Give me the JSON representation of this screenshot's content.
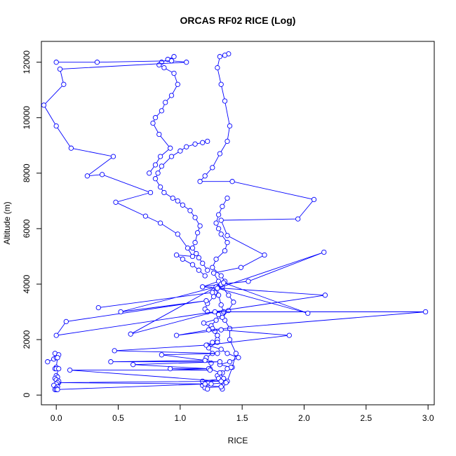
{
  "chart_data": {
    "type": "line",
    "title": "ORCAS RF02 RICE (Log)",
    "xlabel": "RICE",
    "ylabel": "Altitude (m)",
    "xlim": [
      -0.12,
      3.05
    ],
    "ylim": [
      -350,
      12750
    ],
    "xticks": [
      "0.0",
      "0.5",
      "1.0",
      "1.5",
      "2.0",
      "2.5",
      "3.0"
    ],
    "xtick_values": [
      0,
      0.5,
      1.0,
      1.5,
      2.0,
      2.5,
      3.0
    ],
    "yticks": [
      "0",
      "2000",
      "4000",
      "6000",
      "8000",
      "10000",
      "12000"
    ],
    "ytick_values": [
      0,
      2000,
      4000,
      6000,
      8000,
      10000,
      12000
    ],
    "grid": false,
    "marker": "open-circle",
    "color": "#0000ff",
    "series": [
      {
        "x": [
          1.34,
          1.38,
          1.42,
          1.45,
          1.4,
          1.4,
          1.36,
          1.35,
          1.33,
          1.31,
          1.3,
          1.28,
          1.27,
          1.22,
          1.2,
          1.22,
          1.31,
          1.29,
          1.25,
          1.28,
          1.3,
          1.3,
          1.26,
          1.22,
          1.33,
          1.38,
          1.47,
          1.4,
          1.32,
          1.41,
          1.38,
          1.34,
          1.3,
          1.31,
          1.34,
          1.37,
          1.25,
          1.18,
          1.33,
          1.2,
          1.22,
          1.18,
          1.35,
          1.32,
          1.24,
          1.25,
          1.21,
          1.26,
          1.23,
          1.3,
          1.3,
          1.26,
          1.19,
          1.34,
          1.39,
          1.43,
          1.39,
          1.34,
          1.36,
          1.33,
          1.26,
          1.29,
          1.36,
          1.38,
          1.33,
          1.31,
          1.29,
          1.31,
          1.34,
          1.38
        ],
        "y": [
          220,
          500,
          1000,
          1500,
          2000,
          2400,
          2700,
          3000,
          3250,
          3600,
          3900,
          3700,
          3550,
          3300,
          3100,
          3000,
          2900,
          2700,
          2500,
          2300,
          2150,
          2000,
          1900,
          1800,
          1650,
          1500,
          1350,
          1200,
          1100,
          1000,
          950,
          800,
          700,
          600,
          480,
          450,
          400,
          350,
          300,
          260,
          220,
          500,
          600,
          800,
          950,
          1150,
          1350,
          1500,
          1700,
          1900,
          2150,
          2400,
          2600,
          2800,
          3050,
          3350,
          3600,
          3900,
          4100,
          4300,
          4600,
          4900,
          5200,
          5500,
          5800,
          6000,
          6200,
          6500,
          6800,
          7100
        ]
      },
      {
        "x": [
          1.39,
          1.36,
          1.32,
          1.3,
          1.33,
          1.36,
          1.4,
          1.38,
          1.32,
          1.26,
          1.2,
          1.16,
          1.42,
          2.08,
          1.95,
          1.33,
          1.38,
          1.68,
          1.49,
          1.27,
          1.31,
          1.18
        ],
        "y": [
          12300,
          12250,
          12200,
          11800,
          11200,
          10600,
          9700,
          9150,
          8700,
          8200,
          7900,
          7700,
          7700,
          7050,
          6350,
          6300,
          5750,
          5050,
          4600,
          4400,
          4100,
          3900
        ],
        "connect": true
      },
      {
        "x": [
          0.95,
          0.9,
          0.85,
          0.83,
          0.87,
          0.95,
          0.98,
          0.93,
          0.88,
          0.85,
          0.8,
          0.78,
          0.83,
          0.92,
          0.84,
          0.8,
          0.75
        ],
        "y": [
          12200,
          12100,
          12000,
          11900,
          11800,
          11600,
          11200,
          10800,
          10550,
          10250,
          10000,
          9800,
          9400,
          8900,
          8600,
          8300,
          8000
        ],
        "connect": true
      },
      {
        "x": [
          1.22,
          1.18,
          1.12,
          1.05,
          1.0,
          0.93,
          0.85,
          0.82,
          0.8,
          0.84,
          0.87,
          0.94,
          0.98,
          1.02,
          1.08,
          1.12,
          1.16,
          1.14,
          1.12,
          1.1,
          1.13,
          1.15,
          1.18,
          1.22
        ],
        "y": [
          9150,
          9100,
          9050,
          8950,
          8800,
          8600,
          8250,
          8000,
          7800,
          7500,
          7300,
          7100,
          7000,
          6850,
          6650,
          6400,
          6100,
          5850,
          5500,
          5300,
          5100,
          4950,
          4750,
          4500
        ]
      },
      {
        "x": [
          0.0,
          0.33,
          0.93,
          1.05,
          0.03,
          0.06,
          -0.1,
          0.0,
          0.12,
          0.46,
          0.25,
          0.37,
          0.76,
          0.48,
          0.72,
          0.84,
          0.98,
          1.06,
          1.1,
          0.97,
          1.02,
          1.1,
          1.15,
          1.2
        ],
        "y": [
          12000,
          12000,
          12050,
          12000,
          11750,
          11200,
          10450,
          9700,
          8900,
          8600,
          7900,
          7950,
          7300,
          6950,
          6450,
          6200,
          5800,
          5300,
          5000,
          5050,
          4900,
          4700,
          4500,
          4300
        ]
      },
      {
        "x": [
          0.34,
          1.26,
          1.29,
          0.52,
          1.21,
          0.08,
          0.0,
          2.17,
          1.18,
          1.33,
          1.55,
          2.16,
          1.3,
          2.03,
          1.35,
          0.6,
          1.28,
          2.98,
          1.23,
          0.97,
          1.33,
          1.88,
          1.21,
          0.47,
          1.3,
          0.85,
          1.2,
          0.44,
          1.32,
          0.62,
          1.23,
          0.92,
          1.24,
          0.11,
          1.33,
          0.02,
          1.2,
          0.0
        ],
        "y": [
          3150,
          3700,
          3900,
          3000,
          3400,
          2650,
          2150,
          3600,
          3900,
          4000,
          4100,
          5150,
          3850,
          2950,
          4050,
          2200,
          3000,
          3000,
          2350,
          2150,
          2350,
          2150,
          1800,
          1600,
          1500,
          1450,
          1250,
          1200,
          1200,
          1100,
          950,
          950,
          900,
          900,
          500,
          450,
          400,
          200
        ]
      },
      {
        "x": [
          -0.07,
          -0.02,
          0.0,
          0.01,
          0.0,
          -0.01,
          0.02,
          0.01,
          0.0,
          -0.01,
          0.0,
          0.02,
          0.0,
          0.01,
          -0.01,
          0.0,
          0.02,
          0.01,
          0.0,
          -0.02,
          0.01,
          0.0,
          -0.01,
          0.0,
          0.01
        ],
        "y": [
          1200,
          1300,
          1350,
          1400,
          1450,
          1500,
          1450,
          1350,
          1000,
          950,
          950,
          950,
          700,
          650,
          600,
          550,
          500,
          450,
          400,
          350,
          300,
          250,
          200,
          200,
          200
        ]
      }
    ]
  }
}
